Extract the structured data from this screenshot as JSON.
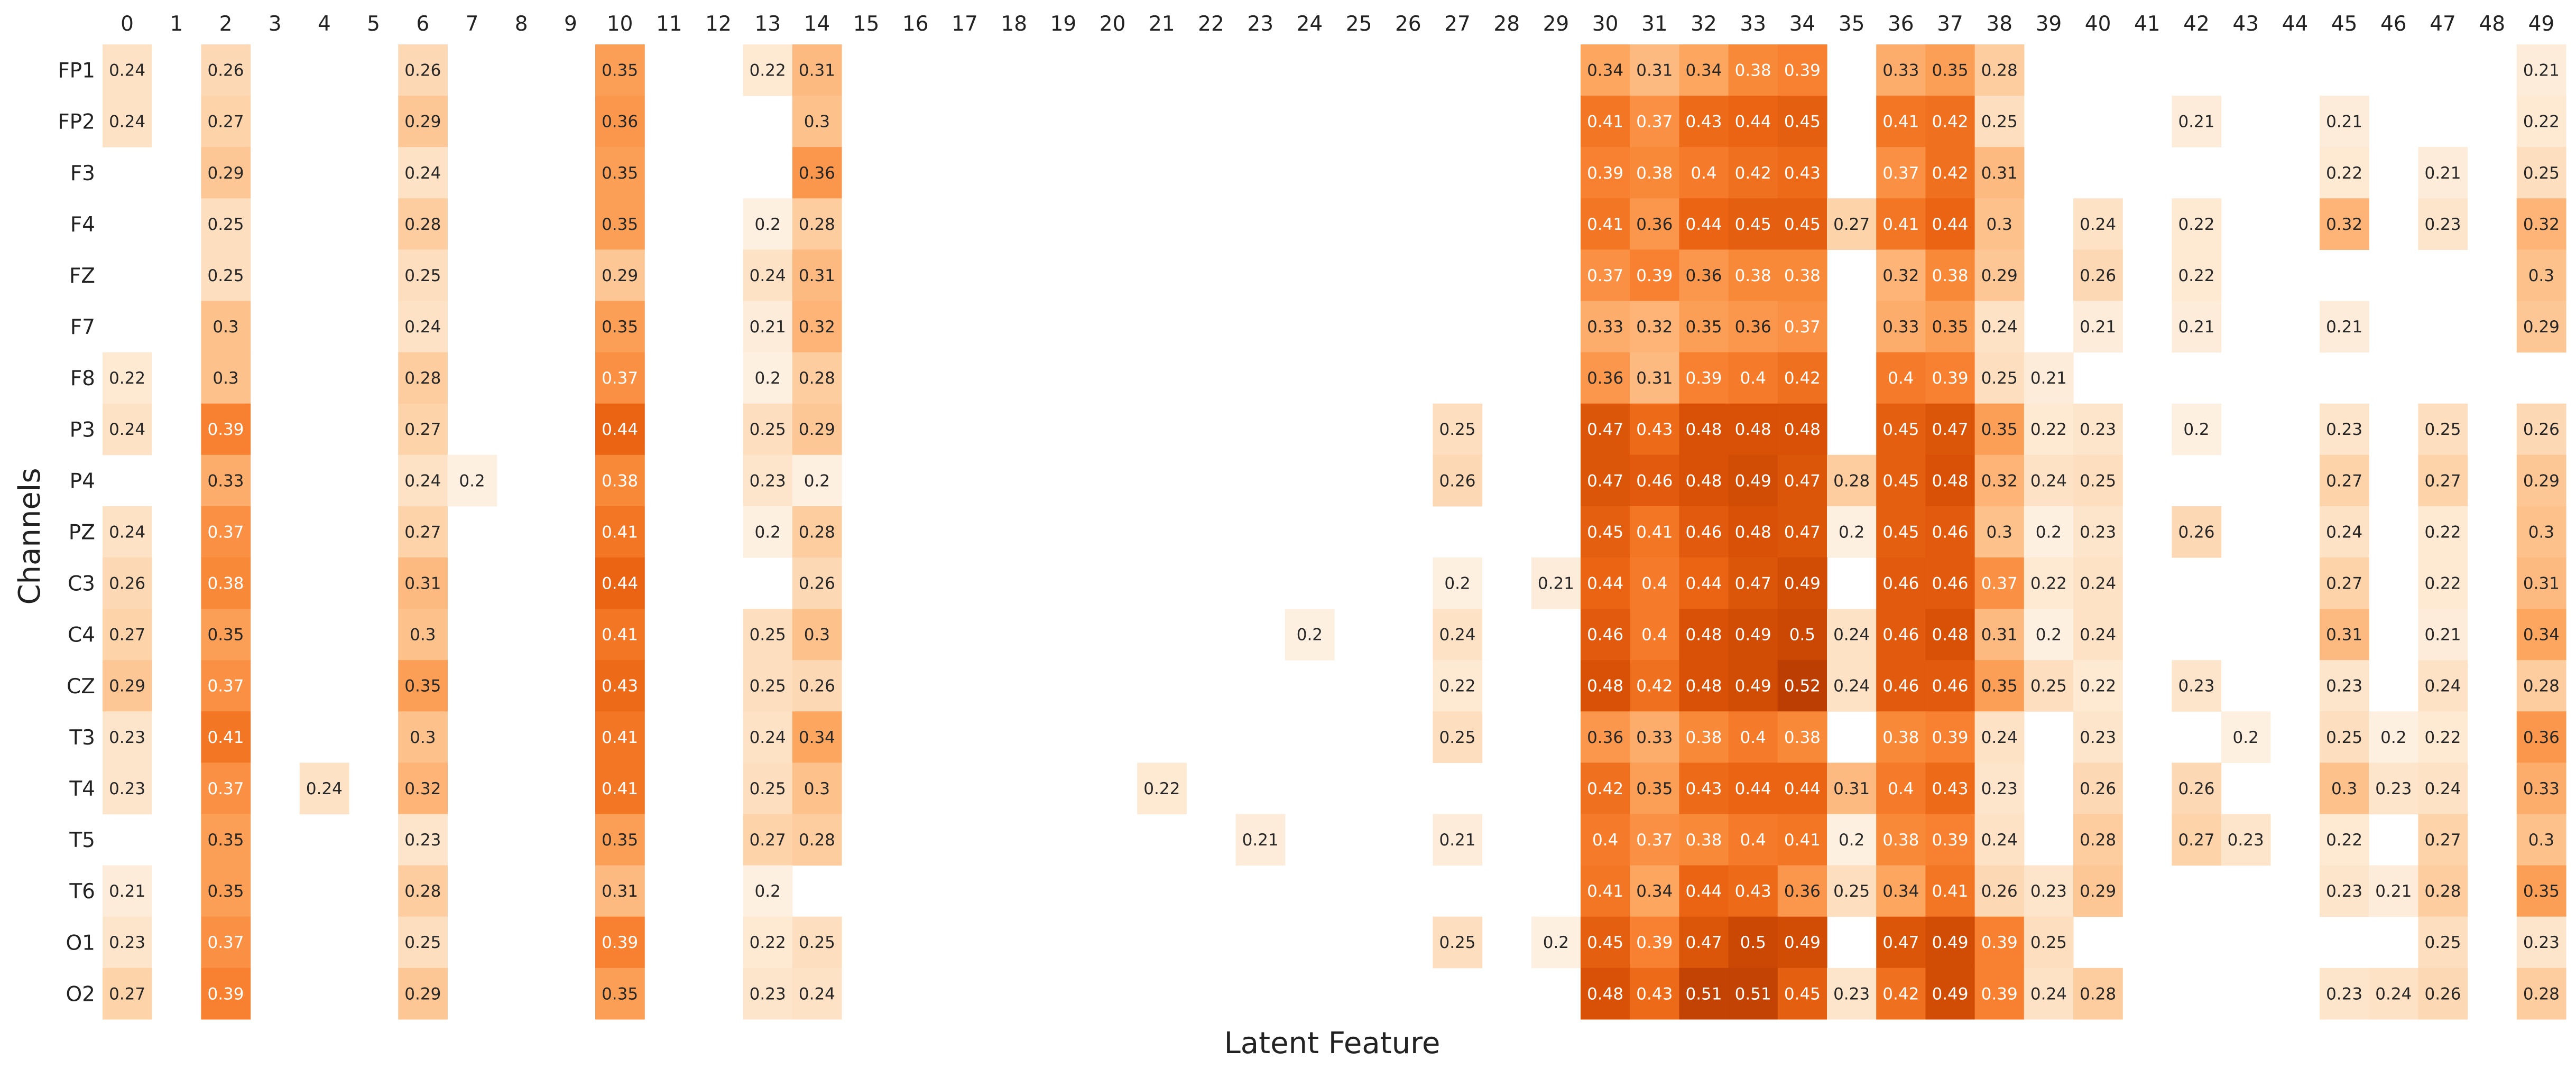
{
  "chart_data": {
    "type": "heatmap",
    "title": "",
    "xlabel": "Latent Feature",
    "ylabel": "Channels",
    "x_categories": [
      "0",
      "1",
      "2",
      "3",
      "4",
      "5",
      "6",
      "7",
      "8",
      "9",
      "10",
      "11",
      "12",
      "13",
      "14",
      "15",
      "16",
      "17",
      "18",
      "19",
      "20",
      "21",
      "22",
      "23",
      "24",
      "25",
      "26",
      "27",
      "28",
      "29",
      "30",
      "31",
      "32",
      "33",
      "34",
      "35",
      "36",
      "37",
      "38",
      "39",
      "40",
      "41",
      "42",
      "43",
      "44",
      "45",
      "46",
      "47",
      "48",
      "49"
    ],
    "y_categories": [
      "FP1",
      "FP2",
      "F3",
      "F4",
      "FZ",
      "F7",
      "F8",
      "P3",
      "P4",
      "PZ",
      "C3",
      "C4",
      "CZ",
      "T3",
      "T4",
      "T5",
      "T6",
      "O1",
      "O2"
    ],
    "colormap": "Oranges",
    "color_min_hex": "#fff5eb",
    "color_max_hex": "#a63603",
    "value_range": [
      0.2,
      0.52
    ],
    "blank_below": 0.2,
    "cells": [
      {
        "row": "FP1",
        "values": {
          "0": 0.24,
          "2": 0.26,
          "6": 0.26,
          "10": 0.35,
          "13": 0.22,
          "14": 0.31,
          "30": 0.34,
          "31": 0.31,
          "32": 0.34,
          "33": 0.38,
          "34": 0.39,
          "36": 0.33,
          "37": 0.35,
          "38": 0.28,
          "49": 0.21
        }
      },
      {
        "row": "FP2",
        "values": {
          "0": 0.24,
          "2": 0.27,
          "6": 0.29,
          "10": 0.36,
          "14": 0.3,
          "30": 0.41,
          "31": 0.37,
          "32": 0.43,
          "33": 0.44,
          "34": 0.45,
          "36": 0.41,
          "37": 0.42,
          "38": 0.25,
          "42": 0.21,
          "45": 0.21,
          "49": 0.22
        }
      },
      {
        "row": "F3",
        "values": {
          "2": 0.29,
          "6": 0.24,
          "10": 0.35,
          "14": 0.36,
          "30": 0.39,
          "31": 0.38,
          "32": 0.4,
          "33": 0.42,
          "34": 0.43,
          "36": 0.37,
          "37": 0.42,
          "38": 0.31,
          "45": 0.22,
          "47": 0.21,
          "49": 0.25
        }
      },
      {
        "row": "F4",
        "values": {
          "2": 0.25,
          "6": 0.28,
          "10": 0.35,
          "13": 0.2,
          "14": 0.28,
          "30": 0.41,
          "31": 0.36,
          "32": 0.44,
          "33": 0.45,
          "34": 0.45,
          "35": 0.27,
          "36": 0.41,
          "37": 0.44,
          "38": 0.3,
          "40": 0.24,
          "42": 0.22,
          "45": 0.32,
          "47": 0.23,
          "49": 0.32
        }
      },
      {
        "row": "FZ",
        "values": {
          "2": 0.25,
          "6": 0.25,
          "10": 0.29,
          "13": 0.24,
          "14": 0.31,
          "30": 0.37,
          "31": 0.39,
          "32": 0.36,
          "33": 0.38,
          "34": 0.38,
          "36": 0.32,
          "37": 0.38,
          "38": 0.29,
          "40": 0.26,
          "42": 0.22,
          "49": 0.3
        }
      },
      {
        "row": "F7",
        "values": {
          "2": 0.3,
          "6": 0.24,
          "10": 0.35,
          "13": 0.21,
          "14": 0.32,
          "30": 0.33,
          "31": 0.32,
          "32": 0.35,
          "33": 0.36,
          "34": 0.37,
          "36": 0.33,
          "37": 0.35,
          "38": 0.24,
          "40": 0.21,
          "42": 0.21,
          "45": 0.21,
          "49": 0.29
        }
      },
      {
        "row": "F8",
        "values": {
          "0": 0.22,
          "2": 0.3,
          "6": 0.28,
          "10": 0.37,
          "13": 0.2,
          "14": 0.28,
          "30": 0.36,
          "31": 0.31,
          "32": 0.39,
          "33": 0.4,
          "34": 0.42,
          "36": 0.4,
          "37": 0.39,
          "38": 0.25,
          "39": 0.21
        }
      },
      {
        "row": "P3",
        "values": {
          "0": 0.24,
          "2": 0.39,
          "6": 0.27,
          "10": 0.44,
          "13": 0.25,
          "14": 0.29,
          "27": 0.25,
          "30": 0.47,
          "31": 0.43,
          "32": 0.48,
          "33": 0.48,
          "34": 0.48,
          "36": 0.45,
          "37": 0.47,
          "38": 0.35,
          "39": 0.22,
          "40": 0.23,
          "42": 0.2,
          "45": 0.23,
          "47": 0.25,
          "49": 0.26
        }
      },
      {
        "row": "P4",
        "values": {
          "2": 0.33,
          "6": 0.24,
          "7": 0.2,
          "10": 0.38,
          "13": 0.23,
          "14": 0.2,
          "27": 0.26,
          "30": 0.47,
          "31": 0.46,
          "32": 0.48,
          "33": 0.49,
          "34": 0.47,
          "35": 0.28,
          "36": 0.45,
          "37": 0.48,
          "38": 0.32,
          "39": 0.24,
          "40": 0.25,
          "45": 0.27,
          "47": 0.27,
          "49": 0.29
        }
      },
      {
        "row": "PZ",
        "values": {
          "0": 0.24,
          "2": 0.37,
          "6": 0.27,
          "10": 0.41,
          "13": 0.2,
          "14": 0.28,
          "30": 0.45,
          "31": 0.41,
          "32": 0.46,
          "33": 0.48,
          "34": 0.47,
          "35": 0.2,
          "36": 0.45,
          "37": 0.46,
          "38": 0.3,
          "39": 0.2,
          "40": 0.23,
          "42": 0.26,
          "45": 0.24,
          "47": 0.22,
          "49": 0.3
        }
      },
      {
        "row": "C3",
        "values": {
          "0": 0.26,
          "2": 0.38,
          "6": 0.31,
          "10": 0.44,
          "14": 0.26,
          "27": 0.2,
          "29": 0.21,
          "30": 0.44,
          "31": 0.4,
          "32": 0.44,
          "33": 0.47,
          "34": 0.49,
          "36": 0.46,
          "37": 0.46,
          "38": 0.37,
          "39": 0.22,
          "40": 0.24,
          "45": 0.27,
          "47": 0.22,
          "49": 0.31
        }
      },
      {
        "row": "C4",
        "values": {
          "0": 0.27,
          "2": 0.35,
          "6": 0.3,
          "10": 0.41,
          "13": 0.25,
          "14": 0.3,
          "24": 0.2,
          "27": 0.24,
          "30": 0.46,
          "31": 0.4,
          "32": 0.48,
          "33": 0.49,
          "34": 0.5,
          "35": 0.24,
          "36": 0.46,
          "37": 0.48,
          "38": 0.31,
          "39": 0.2,
          "40": 0.24,
          "45": 0.31,
          "47": 0.21,
          "49": 0.34
        }
      },
      {
        "row": "CZ",
        "values": {
          "0": 0.29,
          "2": 0.37,
          "6": 0.35,
          "10": 0.43,
          "13": 0.25,
          "14": 0.26,
          "27": 0.22,
          "30": 0.48,
          "31": 0.42,
          "32": 0.48,
          "33": 0.49,
          "34": 0.52,
          "35": 0.24,
          "36": 0.46,
          "37": 0.46,
          "38": 0.35,
          "39": 0.25,
          "40": 0.22,
          "42": 0.23,
          "45": 0.23,
          "47": 0.24,
          "49": 0.28
        }
      },
      {
        "row": "T3",
        "values": {
          "0": 0.23,
          "2": 0.41,
          "6": 0.3,
          "10": 0.41,
          "13": 0.24,
          "14": 0.34,
          "27": 0.25,
          "30": 0.36,
          "31": 0.33,
          "32": 0.38,
          "33": 0.4,
          "34": 0.38,
          "36": 0.38,
          "37": 0.39,
          "38": 0.24,
          "40": 0.23,
          "43": 0.2,
          "45": 0.25,
          "46": 0.2,
          "47": 0.22,
          "49": 0.36
        }
      },
      {
        "row": "T4",
        "values": {
          "0": 0.23,
          "2": 0.37,
          "4": 0.24,
          "6": 0.32,
          "10": 0.41,
          "13": 0.25,
          "14": 0.3,
          "21": 0.22,
          "30": 0.42,
          "31": 0.35,
          "32": 0.43,
          "33": 0.44,
          "34": 0.44,
          "35": 0.31,
          "36": 0.4,
          "37": 0.43,
          "38": 0.23,
          "40": 0.26,
          "42": 0.26,
          "45": 0.3,
          "46": 0.23,
          "47": 0.24,
          "49": 0.33
        }
      },
      {
        "row": "T5",
        "values": {
          "2": 0.35,
          "6": 0.23,
          "10": 0.35,
          "13": 0.27,
          "14": 0.28,
          "23": 0.21,
          "27": 0.21,
          "30": 0.4,
          "31": 0.37,
          "32": 0.38,
          "33": 0.4,
          "34": 0.41,
          "35": 0.2,
          "36": 0.38,
          "37": 0.39,
          "38": 0.24,
          "40": 0.28,
          "42": 0.27,
          "43": 0.23,
          "45": 0.22,
          "47": 0.27,
          "49": 0.3
        }
      },
      {
        "row": "T6",
        "values": {
          "0": 0.21,
          "2": 0.35,
          "6": 0.28,
          "10": 0.31,
          "13": 0.2,
          "30": 0.41,
          "31": 0.34,
          "32": 0.44,
          "33": 0.43,
          "34": 0.36,
          "35": 0.25,
          "36": 0.34,
          "37": 0.41,
          "38": 0.26,
          "39": 0.23,
          "40": 0.29,
          "45": 0.23,
          "46": 0.21,
          "47": 0.28,
          "49": 0.35
        }
      },
      {
        "row": "O1",
        "values": {
          "0": 0.23,
          "2": 0.37,
          "6": 0.25,
          "10": 0.39,
          "13": 0.22,
          "14": 0.25,
          "27": 0.25,
          "29": 0.2,
          "30": 0.45,
          "31": 0.39,
          "32": 0.47,
          "33": 0.5,
          "34": 0.49,
          "36": 0.47,
          "37": 0.49,
          "38": 0.39,
          "39": 0.25,
          "47": 0.25,
          "49": 0.23
        }
      },
      {
        "row": "O2",
        "values": {
          "0": 0.27,
          "2": 0.39,
          "6": 0.29,
          "10": 0.35,
          "13": 0.23,
          "14": 0.24,
          "30": 0.48,
          "31": 0.43,
          "32": 0.51,
          "33": 0.51,
          "34": 0.45,
          "35": 0.23,
          "36": 0.42,
          "37": 0.49,
          "38": 0.39,
          "39": 0.24,
          "40": 0.28,
          "45": 0.23,
          "46": 0.24,
          "47": 0.26,
          "49": 0.28
        }
      }
    ]
  }
}
